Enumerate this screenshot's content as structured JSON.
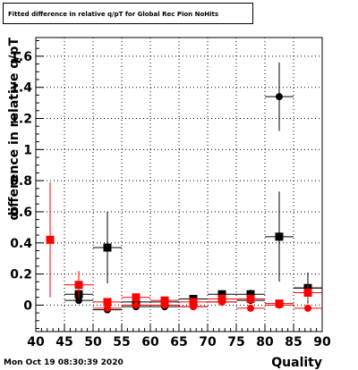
{
  "title": "Fitted difference in relative q/pT for Global Rec Pion NoHits",
  "timestamp": "Mon Oct 19 08:30:39 2020",
  "colors": {
    "series_black": "#000000",
    "series_red": "#ff0000",
    "frame": "#000000",
    "grid": "#000000",
    "background": "#ffffff"
  },
  "chart_data": {
    "type": "scatter",
    "title": "Fitted difference in relative q/pT for Global Rec Pion NoHits",
    "xlabel": "Quality",
    "ylabel": "difference in relative q/pT",
    "xlim": [
      40,
      90
    ],
    "ylim": [
      -0.17,
      1.72
    ],
    "xticks": [
      "40",
      "45",
      "50",
      "55",
      "60",
      "65",
      "70",
      "75",
      "80",
      "85",
      "90"
    ],
    "yticks": [
      "0",
      "0.2",
      "0.4",
      "0.6",
      "0.8",
      "1",
      "1.2",
      "1.4",
      "1.6"
    ],
    "grid": true,
    "series": [
      {
        "marker": "square",
        "color": "#000000",
        "points": [
          {
            "x": 47.5,
            "y": 0.07,
            "xerr": 2.5,
            "yerr": 0.06
          },
          {
            "x": 52.5,
            "y": 0.37,
            "xerr": 2.5,
            "yerr": 0.23
          },
          {
            "x": 57.5,
            "y": 0.02,
            "xerr": 2.5,
            "yerr": 0.02
          },
          {
            "x": 62.5,
            "y": 0.02,
            "xerr": 2.5,
            "yerr": 0.02
          },
          {
            "x": 67.5,
            "y": 0.04,
            "xerr": 2.5,
            "yerr": 0.02
          },
          {
            "x": 72.5,
            "y": 0.07,
            "xerr": 2.5,
            "yerr": 0.02
          },
          {
            "x": 77.5,
            "y": 0.07,
            "xerr": 2.5,
            "yerr": 0.03
          },
          {
            "x": 82.5,
            "y": 0.44,
            "xerr": 2.5,
            "yerr": 0.29
          },
          {
            "x": 87.5,
            "y": 0.11,
            "xerr": 2.5,
            "yerr": 0.1
          }
        ]
      },
      {
        "marker": "circle",
        "color": "#000000",
        "points": [
          {
            "x": 47.5,
            "y": 0.03,
            "xerr": 2.5,
            "yerr": 0.02
          },
          {
            "x": 52.5,
            "y": -0.03,
            "xerr": 2.5,
            "yerr": 0.02
          },
          {
            "x": 57.5,
            "y": -0.01,
            "xerr": 2.5,
            "yerr": 0.01
          },
          {
            "x": 62.5,
            "y": -0.01,
            "xerr": 2.5,
            "yerr": 0.01
          },
          {
            "x": 67.5,
            "y": -0.01,
            "xerr": 2.5,
            "yerr": 0.01
          },
          {
            "x": 72.5,
            "y": 0.02,
            "xerr": 2.5,
            "yerr": 0.01
          },
          {
            "x": 77.5,
            "y": 0.03,
            "xerr": 2.5,
            "yerr": 0.02
          },
          {
            "x": 82.5,
            "y": 1.34,
            "xerr": 2.5,
            "yerr": 0.22
          },
          {
            "x": 87.5,
            "y": 0.11,
            "xerr": 2.5,
            "yerr": 0.03
          }
        ]
      },
      {
        "marker": "square",
        "color": "#ff0000",
        "points": [
          {
            "x": 42.5,
            "y": 0.42,
            "xerr": 0,
            "yerr": 0.37
          },
          {
            "x": 47.5,
            "y": 0.13,
            "xerr": 2.5,
            "yerr": 0.09
          },
          {
            "x": 52.5,
            "y": 0.02,
            "xerr": 2.5,
            "yerr": 0.02
          },
          {
            "x": 57.5,
            "y": 0.05,
            "xerr": 2.5,
            "yerr": 0.02
          },
          {
            "x": 62.5,
            "y": 0.03,
            "xerr": 2.5,
            "yerr": 0.02
          },
          {
            "x": 67.5,
            "y": 0.02,
            "xerr": 2.5,
            "yerr": 0.02
          },
          {
            "x": 72.5,
            "y": 0.04,
            "xerr": 2.5,
            "yerr": 0.02
          },
          {
            "x": 77.5,
            "y": 0.04,
            "xerr": 2.5,
            "yerr": 0.02
          },
          {
            "x": 82.5,
            "y": 0.01,
            "xerr": 2.5,
            "yerr": 0.01
          },
          {
            "x": 87.5,
            "y": 0.08,
            "xerr": 2.5,
            "yerr": 0.05
          }
        ]
      },
      {
        "marker": "circle",
        "color": "#ff0000",
        "points": [
          {
            "x": 52.5,
            "y": -0.02,
            "xerr": 2.5,
            "yerr": 0.01
          },
          {
            "x": 57.5,
            "y": 0.0,
            "xerr": 2.5,
            "yerr": 0.01
          },
          {
            "x": 62.5,
            "y": 0.0,
            "xerr": 2.5,
            "yerr": 0.01
          },
          {
            "x": 67.5,
            "y": -0.01,
            "xerr": 2.5,
            "yerr": 0.01
          },
          {
            "x": 72.5,
            "y": 0.02,
            "xerr": 2.5,
            "yerr": 0.01
          },
          {
            "x": 77.5,
            "y": -0.02,
            "xerr": 2.5,
            "yerr": 0.01
          },
          {
            "x": 82.5,
            "y": 0.0,
            "xerr": 2.5,
            "yerr": 0.01
          },
          {
            "x": 87.5,
            "y": -0.02,
            "xerr": 2.5,
            "yerr": 0.02
          }
        ]
      }
    ]
  }
}
